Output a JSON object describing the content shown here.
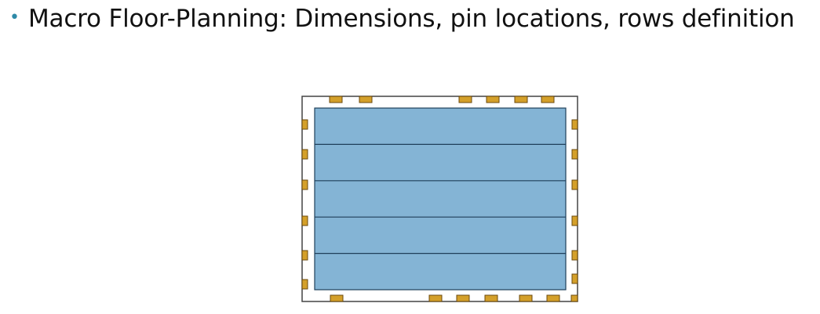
{
  "slide": {
    "bullet_symbol": "•",
    "bullet_text": "Macro Floor-Planning: Dimensions, pin locations, rows definition"
  },
  "diagram": {
    "macro": {
      "row_count": 5,
      "row_color": "#84b4d5",
      "row_border": "#1f3f5a",
      "outline_color": "#444444",
      "pin_color": "#d4a02a",
      "pin_border": "#6b4a0e"
    },
    "pins": {
      "top": 6,
      "bottom": 7,
      "left": 6,
      "right": 6
    }
  }
}
